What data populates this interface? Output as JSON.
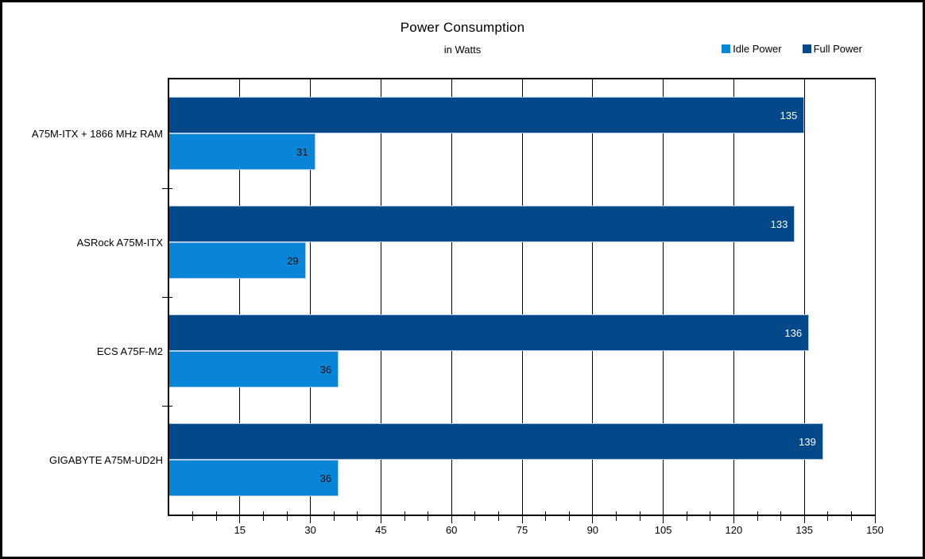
{
  "chart_data": {
    "type": "bar",
    "orientation": "horizontal",
    "title": "Power Consumption",
    "subtitle": "in Watts",
    "categories": [
      "A75M-ITX + 1866 MHz RAM",
      "ASRock A75M-ITX",
      "ECS A75F-M2",
      "GIGABYTE A75M-UD2H"
    ],
    "series": [
      {
        "name": "Full Power",
        "color": "#03498A",
        "label_color": "#FFFFFF",
        "values": [
          135,
          133,
          136,
          139
        ]
      },
      {
        "name": "Idle Power",
        "color": "#0885D6",
        "label_color": "#111111",
        "values": [
          31,
          29,
          36,
          36
        ]
      }
    ],
    "xlim": [
      0,
      150
    ],
    "x_major_ticks": [
      15,
      30,
      45,
      60,
      75,
      90,
      105,
      120,
      135,
      150
    ],
    "x_minor_step": 5,
    "grid": "vertical-major-gridlines",
    "legend_position": "top-right",
    "background": "#FFFFFF",
    "axis_color": "#000000"
  },
  "legend": [
    {
      "label": "Idle Power",
      "color": "#0885D6"
    },
    {
      "label": "Full Power",
      "color": "#03498A"
    }
  ]
}
